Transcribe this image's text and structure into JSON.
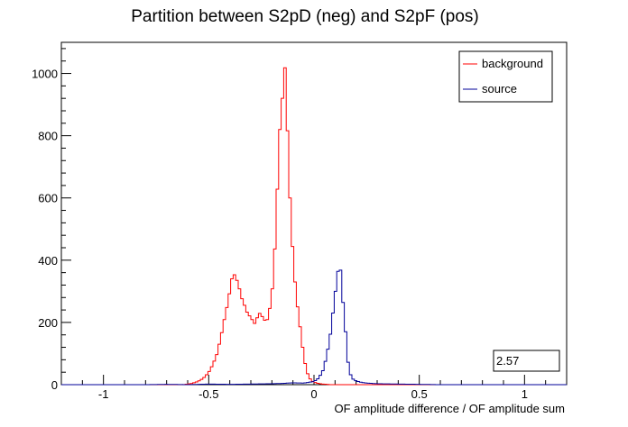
{
  "chart_data": {
    "type": "histogram",
    "title": "Partition between S2pD (neg) and S2pF (pos)",
    "xlabel": "OF amplitude difference / OF amplitude sum",
    "ylabel": "",
    "xlim": [
      -1.2,
      1.2
    ],
    "ylim": [
      0,
      1100
    ],
    "x_ticks": [
      -1,
      -0.5,
      0,
      0.5,
      1
    ],
    "x_tick_labels": [
      "-1",
      "-0.5",
      "0",
      "0.5",
      "1"
    ],
    "y_ticks": [
      0,
      200,
      400,
      600,
      800,
      1000
    ],
    "y_tick_labels": [
      "0",
      "200",
      "400",
      "600",
      "800",
      "1000"
    ],
    "grid": false,
    "legend_position": "top-right",
    "stat_box": "2.57",
    "bins": {
      "start": -1.2,
      "width": 0.012,
      "count": 200
    },
    "series": [
      {
        "name": "background",
        "color": "#ff0000",
        "points": [
          [
            -0.62,
            0
          ],
          [
            -0.6,
            2
          ],
          [
            -0.58,
            4
          ],
          [
            -0.56,
            8
          ],
          [
            -0.54,
            14
          ],
          [
            -0.52,
            24
          ],
          [
            -0.5,
            40
          ],
          [
            -0.48,
            65
          ],
          [
            -0.46,
            100
          ],
          [
            -0.44,
            160
          ],
          [
            -0.42,
            230
          ],
          [
            -0.41,
            260
          ],
          [
            -0.4,
            300
          ],
          [
            -0.39,
            340
          ],
          [
            -0.38,
            355
          ],
          [
            -0.37,
            345
          ],
          [
            -0.36,
            320
          ],
          [
            -0.35,
            300
          ],
          [
            -0.34,
            270
          ],
          [
            -0.33,
            255
          ],
          [
            -0.32,
            235
          ],
          [
            -0.31,
            225
          ],
          [
            -0.3,
            215
          ],
          [
            -0.29,
            205
          ],
          [
            -0.28,
            195
          ],
          [
            -0.27,
            215
          ],
          [
            -0.26,
            230
          ],
          [
            -0.25,
            225
          ],
          [
            -0.24,
            210
          ],
          [
            -0.23,
            205
          ],
          [
            -0.22,
            210
          ],
          [
            -0.21,
            245
          ],
          [
            -0.2,
            290
          ],
          [
            -0.19,
            380
          ],
          [
            -0.18,
            520
          ],
          [
            -0.17,
            700
          ],
          [
            -0.16,
            850
          ],
          [
            -0.15,
            920
          ],
          [
            -0.14,
            1048
          ],
          [
            -0.13,
            900
          ],
          [
            -0.12,
            690
          ],
          [
            -0.11,
            540
          ],
          [
            -0.1,
            420
          ],
          [
            -0.09,
            330
          ],
          [
            -0.08,
            260
          ],
          [
            -0.07,
            210
          ],
          [
            -0.06,
            150
          ],
          [
            -0.05,
            100
          ],
          [
            -0.04,
            60
          ],
          [
            -0.03,
            35
          ],
          [
            -0.02,
            20
          ],
          [
            -0.01,
            12
          ],
          [
            0.0,
            8
          ],
          [
            0.02,
            4
          ],
          [
            0.04,
            2
          ],
          [
            0.06,
            1
          ],
          [
            0.08,
            0
          ]
        ]
      },
      {
        "name": "source",
        "color": "#000099",
        "points": [
          [
            -0.8,
            0
          ],
          [
            -0.7,
            1
          ],
          [
            -0.6,
            0
          ],
          [
            -0.5,
            2
          ],
          [
            -0.4,
            1
          ],
          [
            -0.3,
            2
          ],
          [
            -0.2,
            3
          ],
          [
            -0.15,
            4
          ],
          [
            -0.1,
            6
          ],
          [
            -0.05,
            5
          ],
          [
            0.0,
            10
          ],
          [
            0.02,
            20
          ],
          [
            0.04,
            40
          ],
          [
            0.06,
            90
          ],
          [
            0.08,
            170
          ],
          [
            0.09,
            230
          ],
          [
            0.1,
            290
          ],
          [
            0.11,
            340
          ],
          [
            0.12,
            400
          ],
          [
            0.125,
            380
          ],
          [
            0.13,
            320
          ],
          [
            0.14,
            250
          ],
          [
            0.15,
            170
          ],
          [
            0.16,
            80
          ],
          [
            0.17,
            40
          ],
          [
            0.18,
            20
          ],
          [
            0.2,
            12
          ],
          [
            0.22,
            8
          ],
          [
            0.25,
            5
          ],
          [
            0.3,
            3
          ],
          [
            0.4,
            2
          ],
          [
            0.5,
            1
          ],
          [
            0.6,
            0
          ],
          [
            0.8,
            0
          ]
        ]
      }
    ]
  }
}
